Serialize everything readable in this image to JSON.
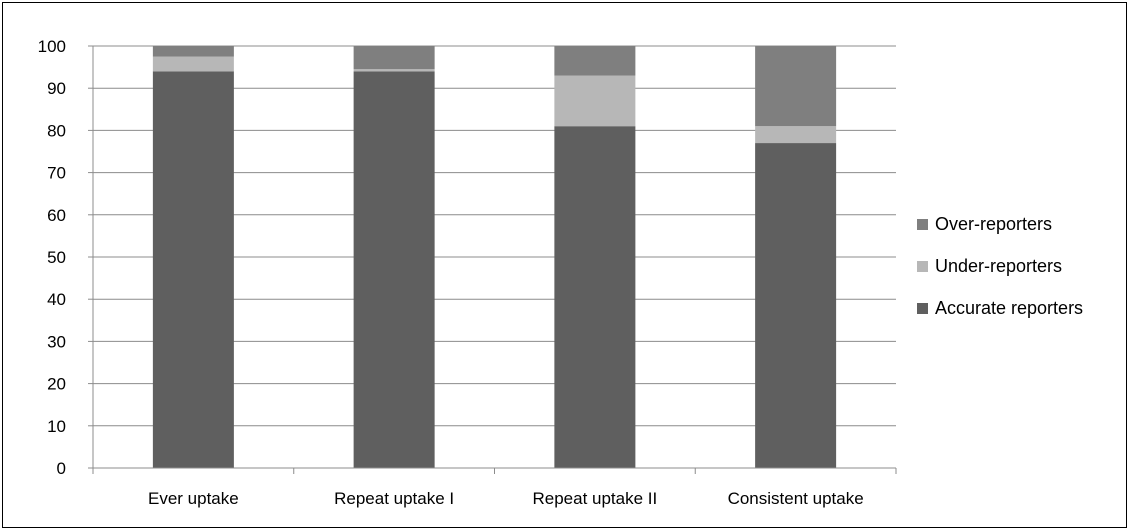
{
  "chart_data": {
    "type": "bar",
    "stacked": true,
    "categories": [
      "Ever uptake",
      "Repeat uptake I",
      "Repeat uptake II",
      "Consistent uptake"
    ],
    "series": [
      {
        "name": "Accurate reporters",
        "values": [
          94,
          94,
          81,
          77
        ],
        "color": "#5f5f5f"
      },
      {
        "name": "Under-reporters",
        "values": [
          3.5,
          0.5,
          12,
          4
        ],
        "color": "#b7b7b7"
      },
      {
        "name": "Over-reporters",
        "values": [
          2.5,
          5.5,
          7,
          19
        ],
        "color": "#7f7f7f"
      }
    ],
    "ylim": [
      0,
      100
    ],
    "yticks": [
      "0",
      "10",
      "20",
      "30",
      "40",
      "50",
      "60",
      "70",
      "80",
      "90",
      "100"
    ],
    "grid": true,
    "legend": "right",
    "legend_order": [
      "Over-reporters",
      "Under-reporters",
      "Accurate reporters"
    ],
    "title": "",
    "xlabel": "",
    "ylabel": ""
  }
}
